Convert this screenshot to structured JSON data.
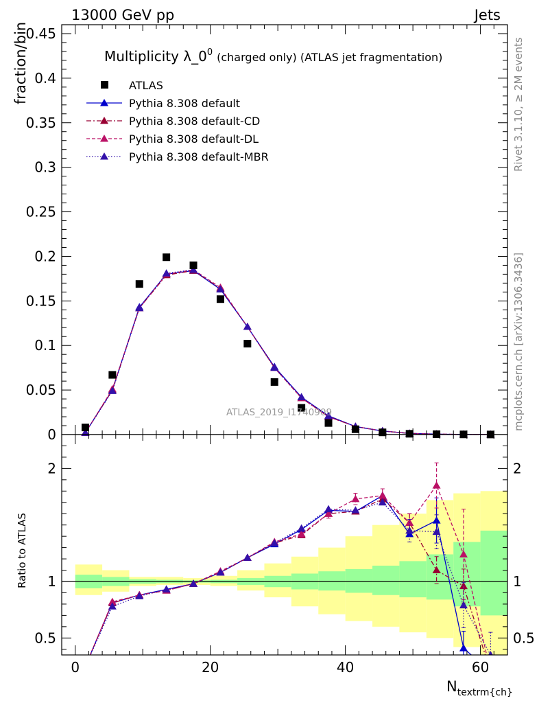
{
  "header": {
    "energy": "13000 GeV pp",
    "category": "Jets"
  },
  "side_labels": {
    "rivet": "Rivet 3.1.10, ≥ 2M events",
    "source": "mcplots.cern.ch [arXiv:1306.3436]"
  },
  "watermark": "ATLAS_2019_I1740909",
  "chart_data": [
    {
      "type": "scatter",
      "title": "Multiplicity λ_0⁰ (charged only) (ATLAS jet fragmentation)",
      "title_main": "Multiplicity λ_0",
      "title_sup": "0",
      "title_rest": "(charged only) (ATLAS jet fragmentation)",
      "ylabel": "fraction/bin",
      "xlim": [
        -2,
        64
      ],
      "ylim": [
        0,
        0.46
      ],
      "yticks": [
        0,
        0.05,
        0.1,
        0.15,
        0.2,
        0.25,
        0.3,
        0.35,
        0.4,
        0.45
      ],
      "ytick_labels": [
        "0",
        "0.05",
        "0.1",
        "0.15",
        "0.2",
        "0.25",
        "0.3",
        "0.35",
        "0.4",
        "0.45"
      ],
      "legend_position": "top-left",
      "x": [
        1.5,
        5.5,
        9.5,
        13.5,
        17.5,
        21.5,
        25.5,
        29.5,
        33.5,
        37.5,
        41.5,
        45.5,
        49.5,
        53.5,
        57.5,
        61.5
      ],
      "series": [
        {
          "name": "ATLAS",
          "style": "data",
          "color": "#000000",
          "values": [
            0.008,
            0.067,
            0.169,
            0.199,
            0.19,
            0.152,
            0.102,
            0.059,
            0.03,
            0.013,
            0.006,
            0.0025,
            0.0009,
            0.0004,
            0.0002,
            0.0001
          ]
        },
        {
          "name": "Pythia 8.308 default",
          "style": "solid",
          "color": "#0000cc",
          "values": [
            0.002,
            0.05,
            0.143,
            0.18,
            0.184,
            0.163,
            0.121,
            0.076,
            0.042,
            0.021,
            0.009,
            0.004,
            0.0013,
            0.0005,
            0.0002,
            0.0001
          ]
        },
        {
          "name": "Pythia 8.308 default-CD",
          "style": "dashdot",
          "color": "#990033",
          "values": [
            0.002,
            0.05,
            0.142,
            0.179,
            0.184,
            0.164,
            0.121,
            0.075,
            0.041,
            0.02,
            0.009,
            0.004,
            0.0013,
            0.0005,
            0.0002,
            0.0001
          ]
        },
        {
          "name": "Pythia 8.308 default-DL",
          "style": "dashed",
          "color": "#bb1166",
          "values": [
            0.002,
            0.051,
            0.142,
            0.18,
            0.185,
            0.165,
            0.121,
            0.075,
            0.041,
            0.02,
            0.009,
            0.004,
            0.0013,
            0.0005,
            0.0002,
            0.0001
          ]
        },
        {
          "name": "Pythia 8.308 default-MBR",
          "style": "dotted",
          "color": "#3311aa",
          "values": [
            0.002,
            0.049,
            0.142,
            0.181,
            0.185,
            0.163,
            0.121,
            0.075,
            0.042,
            0.021,
            0.009,
            0.004,
            0.0013,
            0.0005,
            0.0002,
            0.0001
          ]
        }
      ]
    },
    {
      "type": "line",
      "ylabel": "Ratio to ATLAS",
      "xlabel": "N_textrm{ch}",
      "xlabel_main": "N",
      "xlabel_sub": "textrm{ch}",
      "xlim": [
        -2,
        64
      ],
      "ylim": [
        0.35,
        2.3
      ],
      "xticks": [
        0,
        20,
        40,
        60
      ],
      "xtick_labels": [
        "0",
        "20",
        "40",
        "60"
      ],
      "yticks": [
        0.5,
        1,
        2
      ],
      "ytick_labels": [
        "0.5",
        "1",
        "2"
      ],
      "band_edges": [
        0,
        4,
        8,
        12,
        16,
        20,
        24,
        28,
        32,
        36,
        40,
        44,
        48,
        52,
        56,
        60,
        64
      ],
      "band_green_lo": [
        0.94,
        0.96,
        0.98,
        0.985,
        0.99,
        0.985,
        0.97,
        0.95,
        0.93,
        0.92,
        0.9,
        0.88,
        0.86,
        0.84,
        0.78,
        0.7
      ],
      "band_green_hi": [
        1.06,
        1.04,
        1.02,
        1.015,
        1.01,
        1.015,
        1.03,
        1.05,
        1.07,
        1.09,
        1.11,
        1.14,
        1.18,
        1.24,
        1.35,
        1.45
      ],
      "band_yellow_lo": [
        0.88,
        0.91,
        0.96,
        0.97,
        0.97,
        0.96,
        0.92,
        0.86,
        0.78,
        0.71,
        0.65,
        0.6,
        0.55,
        0.5,
        0.42,
        0.35
      ],
      "band_yellow_hi": [
        1.15,
        1.1,
        1.04,
        1.04,
        1.03,
        1.05,
        1.1,
        1.16,
        1.22,
        1.3,
        1.4,
        1.5,
        1.6,
        1.72,
        1.78,
        1.8
      ],
      "reference_line": 1,
      "x": [
        1.5,
        5.5,
        9.5,
        13.5,
        17.5,
        21.5,
        25.5,
        29.5,
        33.5,
        37.5,
        41.5,
        45.5,
        49.5,
        53.5,
        57.5,
        61.5
      ],
      "series": [
        {
          "name": "Pythia 8.308 default",
          "style": "solid",
          "color": "#0000cc",
          "values": [
            0.25,
            0.81,
            0.88,
            0.93,
            0.98,
            1.08,
            1.21,
            1.33,
            1.46,
            1.63,
            1.62,
            1.76,
            1.42,
            1.54,
            0.41,
            0.2
          ],
          "errors": [
            0,
            0,
            0,
            0,
            0,
            0,
            0,
            0,
            0,
            0,
            0,
            0,
            0,
            0.2,
            0.15,
            0
          ]
        },
        {
          "name": "Pythia 8.308 default-CD",
          "style": "dashdot",
          "color": "#990033",
          "values": [
            0.25,
            0.81,
            0.88,
            0.92,
            0.98,
            1.08,
            1.21,
            1.34,
            1.41,
            1.6,
            1.62,
            1.73,
            1.52,
            1.1,
            0.96,
            0.2
          ],
          "errors": [
            0,
            0,
            0,
            0,
            0,
            0,
            0,
            0,
            0,
            0,
            0,
            0,
            0.08,
            0.12,
            0.15,
            0
          ]
        },
        {
          "name": "Pythia 8.308 default-DL",
          "style": "dashed",
          "color": "#bb1166",
          "values": [
            0.25,
            0.82,
            0.88,
            0.92,
            0.98,
            1.09,
            1.21,
            1.35,
            1.42,
            1.6,
            1.73,
            1.76,
            1.52,
            1.85,
            1.24,
            0.2
          ],
          "errors": [
            0,
            0,
            0,
            0,
            0,
            0,
            0,
            0,
            0.03,
            0.04,
            0.05,
            0.06,
            0.08,
            0.2,
            0.4,
            0
          ]
        },
        {
          "name": "Pythia 8.308 default-MBR",
          "style": "dotted",
          "color": "#3311aa",
          "values": [
            0.25,
            0.78,
            0.87,
            0.93,
            0.98,
            1.08,
            1.21,
            1.34,
            1.47,
            1.64,
            1.63,
            1.7,
            1.45,
            1.44,
            0.79,
            0.35
          ],
          "errors": [
            0,
            0,
            0,
            0,
            0,
            0,
            0,
            0,
            0,
            0,
            0,
            0,
            0.1,
            0.15,
            0.2,
            0.2
          ]
        }
      ]
    }
  ]
}
